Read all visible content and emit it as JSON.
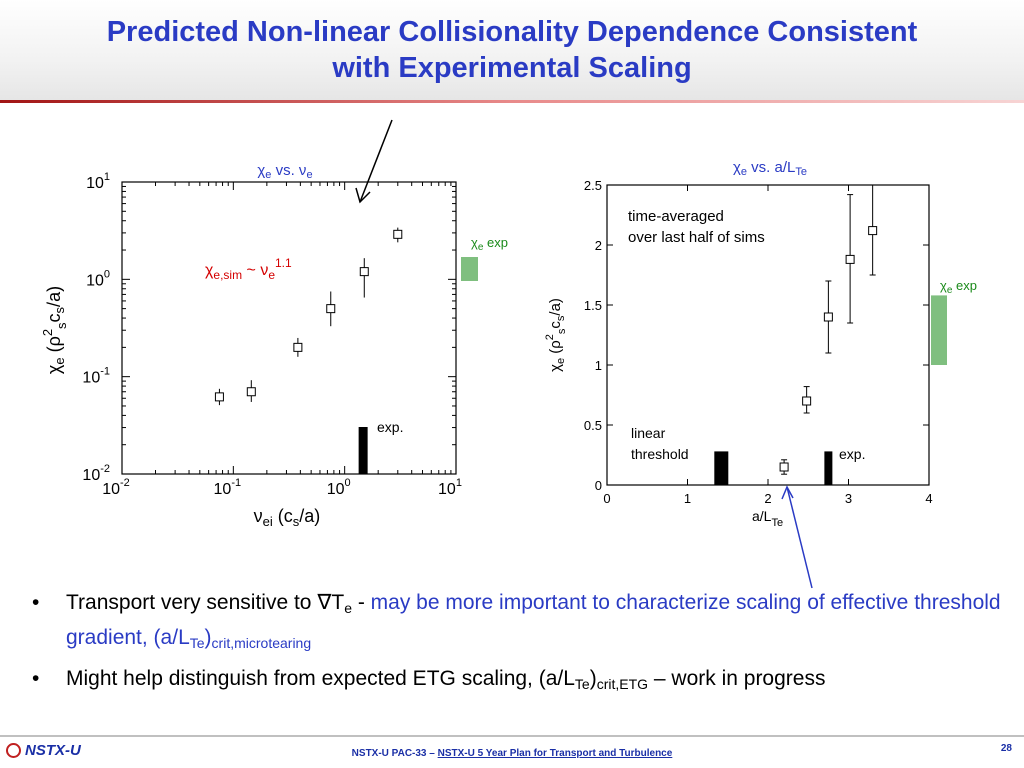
{
  "slide": {
    "title_line1": "Predicted Non-linear Collisionality Dependence Consistent",
    "title_line2": "with Experimental Scaling"
  },
  "colors": {
    "title": "#2a3bc4",
    "exp_bar": "#7fbf7f",
    "annotation_red": "#d40000",
    "label_green": "#1a8a1a"
  },
  "chart_data": [
    {
      "type": "scatter",
      "title": "χe vs. νe",
      "xlabel": "νei (cs/a)",
      "ylabel": "χe (ρs²cs/a)",
      "x_scale": "log",
      "y_scale": "log",
      "xlim": [
        0.01,
        10
      ],
      "ylim": [
        0.01,
        10
      ],
      "x_ticks": [
        "10^-2",
        "10^-1",
        "10^0",
        "10^1"
      ],
      "y_ticks": [
        "10^-2",
        "10^-1",
        "10^0",
        "10^1"
      ],
      "points": [
        {
          "x": 0.075,
          "y": 0.062,
          "err_low": 0.051,
          "err_high": 0.075
        },
        {
          "x": 0.145,
          "y": 0.07,
          "err_low": 0.055,
          "err_high": 0.092
        },
        {
          "x": 0.38,
          "y": 0.2,
          "err_low": 0.16,
          "err_high": 0.25
        },
        {
          "x": 0.75,
          "y": 0.5,
          "err_low": 0.33,
          "err_high": 0.75
        },
        {
          "x": 1.5,
          "y": 1.2,
          "err_low": 0.65,
          "err_high": 1.65
        },
        {
          "x": 3.0,
          "y": 2.9,
          "err_low": 2.4,
          "err_high": 3.4
        }
      ],
      "exp_bar": {
        "x": 1.45,
        "label": "exp."
      },
      "fit_label": "χe,sim ~ νe1.1",
      "exp_range": {
        "label": "χe exp"
      }
    },
    {
      "type": "scatter",
      "title": "χe vs. a/LTe",
      "xlabel": "a/LTe",
      "ylabel": "χe (ρs²cs/a)",
      "xlim": [
        0,
        4
      ],
      "ylim": [
        0,
        2.5
      ],
      "x_ticks": [
        "0",
        "1",
        "2",
        "3",
        "4"
      ],
      "y_ticks": [
        "0",
        "0.5",
        "1",
        "1.5",
        "2",
        "2.5"
      ],
      "points": [
        {
          "x": 2.2,
          "y": 0.15,
          "err_low": 0.09,
          "err_high": 0.21
        },
        {
          "x": 2.48,
          "y": 0.7,
          "err_low": 0.6,
          "err_high": 0.82
        },
        {
          "x": 2.75,
          "y": 1.4,
          "err_low": 1.1,
          "err_high": 1.7
        },
        {
          "x": 3.02,
          "y": 1.88,
          "err_low": 1.35,
          "err_high": 2.42
        },
        {
          "x": 3.3,
          "y": 2.12,
          "err_low": 1.75,
          "err_high": 2.5
        }
      ],
      "annotation": [
        "time-averaged",
        "over last half of sims"
      ],
      "threshold_label": [
        "linear",
        "threshold"
      ],
      "threshold_bar": {
        "x": 1.42,
        "height": 0.28
      },
      "exp_bar": {
        "x": 2.75,
        "height": 0.28,
        "label": "exp."
      },
      "exp_range": {
        "low": 1.0,
        "high": 1.58,
        "label": "χe exp"
      }
    }
  ],
  "bullets": {
    "b1_text": "Transport very sensitive to ∇T",
    "b1_sub": "e",
    "b1_dash": " - ",
    "b1_blue": "may be more important to characterize scaling of effective threshold gradient, (a/L",
    "b1_blue_sub1": "Te",
    "b1_blue_close": ")",
    "b1_blue_sub2": "crit,microtearing",
    "b2_text": "Might help distinguish from expected ETG scaling, (a/L",
    "b2_sub1": "Te",
    "b2_close": ")",
    "b2_sub2": "crit,ETG",
    "b2_tail": "  – work in progress"
  },
  "footer": {
    "logo": "NSTX-U",
    "center_a": "NSTX-U PAC-33 – ",
    "center_b": "NSTX-U 5 Year Plan for Transport and Turbulence",
    "page": "28"
  }
}
